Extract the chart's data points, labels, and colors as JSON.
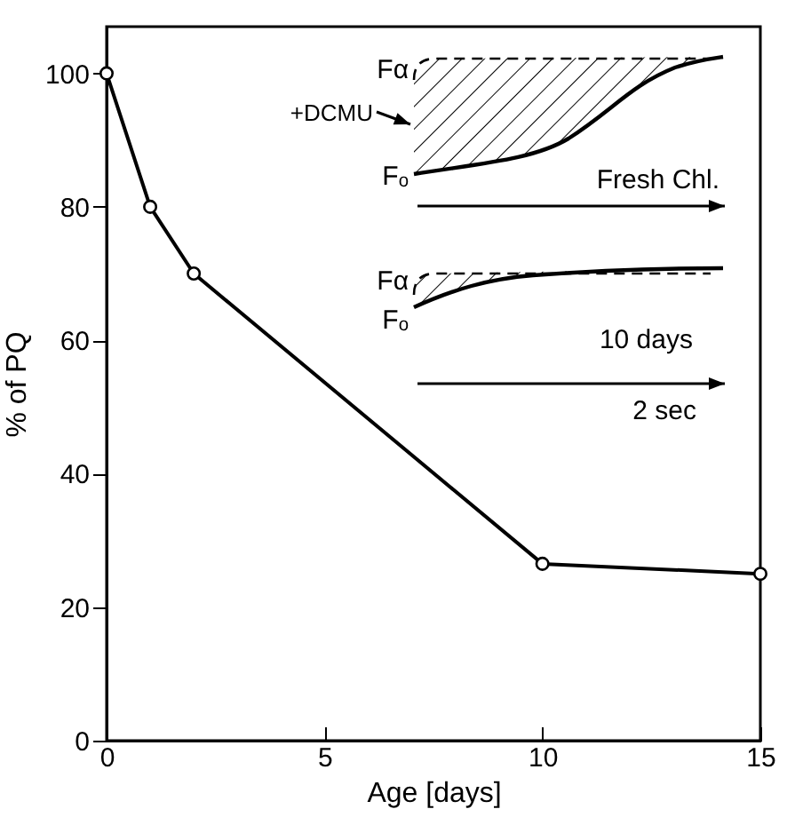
{
  "chart_data": {
    "type": "line",
    "xlabel": "Age [days]",
    "ylabel": "% of PQ",
    "x": [
      0,
      1,
      2,
      10,
      15
    ],
    "series": [
      {
        "color": "#000000",
        "values": [
          100,
          80,
          70,
          26.5,
          25
        ]
      }
    ],
    "xlim": [
      0,
      15
    ],
    "ylim": [
      0,
      107
    ],
    "xticks": [
      0,
      5,
      10,
      15
    ],
    "yticks": [
      0,
      20,
      40,
      60,
      80,
      100
    ],
    "marker": "circle",
    "line_style": "solid",
    "grid": false,
    "annotations": [
      "Fα",
      "+DCMU",
      "Fₒ",
      "Fresh Chl.",
      "Fα",
      "Fₒ",
      "10 days",
      "2 sec"
    ]
  }
}
